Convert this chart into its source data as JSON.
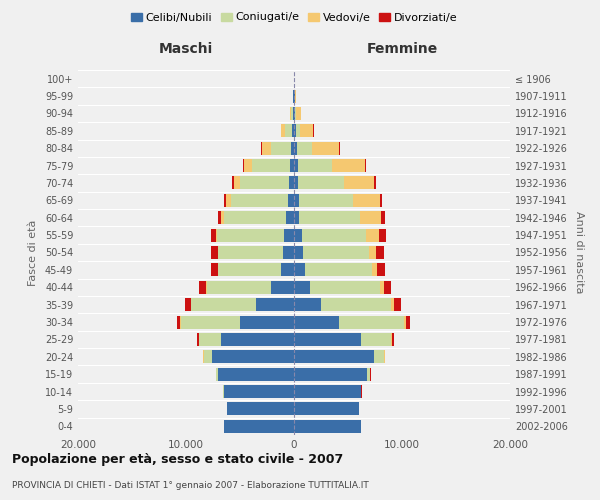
{
  "age_groups": [
    "0-4",
    "5-9",
    "10-14",
    "15-19",
    "20-24",
    "25-29",
    "30-34",
    "35-39",
    "40-44",
    "45-49",
    "50-54",
    "55-59",
    "60-64",
    "65-69",
    "70-74",
    "75-79",
    "80-84",
    "85-89",
    "90-94",
    "95-99",
    "100+"
  ],
  "birth_years": [
    "2002-2006",
    "1997-2001",
    "1992-1996",
    "1987-1991",
    "1982-1986",
    "1977-1981",
    "1972-1976",
    "1967-1971",
    "1962-1966",
    "1957-1961",
    "1952-1956",
    "1947-1951",
    "1942-1946",
    "1937-1941",
    "1932-1936",
    "1927-1931",
    "1922-1926",
    "1917-1921",
    "1912-1916",
    "1907-1911",
    "≤ 1906"
  ],
  "male_celibe": [
    6500,
    6200,
    6500,
    7000,
    7600,
    6800,
    5000,
    3500,
    2100,
    1200,
    1000,
    900,
    700,
    600,
    500,
    400,
    300,
    200,
    100,
    60,
    20
  ],
  "male_coniugato": [
    10,
    20,
    30,
    200,
    700,
    2000,
    5500,
    6000,
    6000,
    5800,
    6000,
    6200,
    5800,
    5200,
    4500,
    3500,
    1800,
    600,
    150,
    30,
    10
  ],
  "male_vedovo": [
    5,
    5,
    5,
    20,
    80,
    30,
    10,
    20,
    20,
    30,
    50,
    100,
    300,
    500,
    600,
    700,
    900,
    400,
    120,
    30,
    5
  ],
  "male_divorziato": [
    5,
    5,
    5,
    20,
    60,
    150,
    350,
    600,
    700,
    700,
    600,
    500,
    200,
    150,
    120,
    80,
    30,
    20,
    10,
    5,
    0
  ],
  "female_celibe": [
    6200,
    6000,
    6200,
    6800,
    7400,
    6200,
    4200,
    2500,
    1500,
    1000,
    800,
    700,
    500,
    450,
    400,
    350,
    300,
    200,
    100,
    60,
    20
  ],
  "female_coniugata": [
    10,
    20,
    40,
    250,
    900,
    2800,
    6000,
    6500,
    6500,
    6200,
    6100,
    6000,
    5600,
    5000,
    4200,
    3200,
    1400,
    400,
    120,
    25,
    8
  ],
  "female_vedova": [
    5,
    5,
    5,
    20,
    80,
    80,
    150,
    250,
    350,
    500,
    700,
    1200,
    2000,
    2500,
    2800,
    3000,
    2500,
    1200,
    400,
    80,
    10
  ],
  "female_divorziata": [
    5,
    5,
    5,
    20,
    80,
    200,
    400,
    700,
    600,
    700,
    700,
    600,
    300,
    200,
    150,
    100,
    40,
    20,
    10,
    5,
    0
  ],
  "colors": {
    "celibe": "#3a6ea8",
    "coniugato": "#c8daa0",
    "vedovo": "#f5c870",
    "divorziato": "#cc1111"
  },
  "xlim": 20000,
  "title": "Popolazione per età, sesso e stato civile - 2007",
  "subtitle": "PROVINCIA DI CHIETI - Dati ISTAT 1° gennaio 2007 - Elaborazione TUTTITALIA.IT",
  "ylabel_left": "Fasce di età",
  "ylabel_right": "Anni di nascita",
  "xlabel_left": "Maschi",
  "xlabel_right": "Femmine",
  "background_color": "#f0f0f0"
}
